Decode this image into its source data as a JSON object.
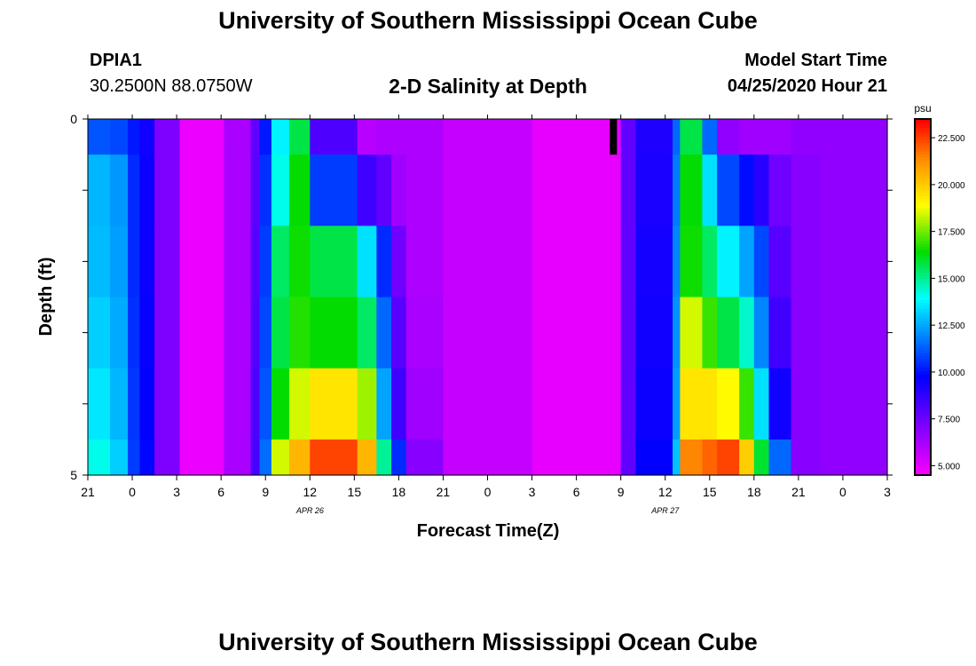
{
  "header": {
    "title": "University of Southern Mississippi Ocean Cube",
    "station_id": "DPIA1",
    "station_coords": "30.2500N 88.0750W",
    "chart_title": "2-D Salinity at Depth",
    "model_start_label": "Model Start Time",
    "model_start_value": "04/25/2020 Hour 21"
  },
  "footer": {
    "title": "University of Southern Mississippi Ocean Cube"
  },
  "chart_data": {
    "type": "heatmap",
    "title": "2-D Salinity at Depth",
    "xlabel": "Forecast Time(Z)",
    "ylabel": "Depth (ft)",
    "ylim": [
      0,
      5
    ],
    "y_tick_labels": [
      "0",
      "5"
    ],
    "x_tick_labels": [
      "21",
      "0",
      "3",
      "6",
      "9",
      "12",
      "15",
      "18",
      "21",
      "0",
      "3",
      "6",
      "9",
      "12",
      "15",
      "18",
      "21",
      "0",
      "3"
    ],
    "date_labels": [
      {
        "text": "APR 26",
        "hour_offset": 18
      },
      {
        "text": "APR 27",
        "hour_offset": 42
      }
    ],
    "hours_span": 54,
    "colorbar": {
      "unit": "psu",
      "min": 4.5,
      "max": 23.5,
      "tick_values": [
        5.0,
        7.5,
        10.0,
        12.5,
        15.0,
        17.5,
        20.0,
        22.5
      ],
      "tick_labels": [
        "5.000",
        "7.500",
        "10.000",
        "12.500",
        "15.000",
        "17.500",
        "20.000",
        "22.500"
      ]
    },
    "missing_data": [
      {
        "hour": 35.5,
        "depth_from": 0,
        "depth_to": 0.5
      }
    ],
    "depth_bands": [
      0,
      0.5,
      1.5,
      2.5,
      3.5,
      4.5,
      5
    ],
    "time_segments": [
      {
        "h0": 0,
        "h1": 1.5,
        "v": [
          11.2,
          12.8,
          12.9,
          13.2,
          13.6,
          14.2
        ]
      },
      {
        "h0": 1.5,
        "h1": 2.7,
        "v": [
          11.0,
          12.3,
          12.4,
          12.6,
          12.8,
          13.2
        ]
      },
      {
        "h0": 2.7,
        "h1": 3.5,
        "v": [
          10.2,
          10.5,
          10.5,
          10.6,
          10.7,
          10.8
        ]
      },
      {
        "h0": 3.5,
        "h1": 4.5,
        "v": [
          9.5,
          9.6,
          9.6,
          9.7,
          9.8,
          9.9
        ]
      },
      {
        "h0": 4.5,
        "h1": 6.2,
        "v": [
          7.2,
          7.2,
          7.2,
          7.2,
          7.2,
          7.2
        ]
      },
      {
        "h0": 6.2,
        "h1": 9.2,
        "v": [
          4.9,
          4.9,
          4.9,
          4.9,
          4.9,
          4.9
        ]
      },
      {
        "h0": 9.2,
        "h1": 11.0,
        "v": [
          6.3,
          6.3,
          6.3,
          6.3,
          6.3,
          6.3
        ]
      },
      {
        "h0": 11.0,
        "h1": 11.6,
        "v": [
          7.8,
          7.9,
          8.0,
          8.1,
          8.2,
          8.3
        ]
      },
      {
        "h0": 11.6,
        "h1": 12.4,
        "v": [
          10.2,
          10.6,
          10.8,
          11.0,
          11.2,
          11.6
        ]
      },
      {
        "h0": 12.4,
        "h1": 13.6,
        "v": [
          13.8,
          14.2,
          15.5,
          15.8,
          16.5,
          18.5
        ]
      },
      {
        "h0": 13.6,
        "h1": 15.0,
        "v": [
          15.8,
          16.5,
          16.6,
          16.8,
          18.5,
          20.5
        ]
      },
      {
        "h0": 15.0,
        "h1": 18.2,
        "v": [
          8.2,
          10.8,
          15.8,
          16.5,
          19.5,
          22.5
        ]
      },
      {
        "h0": 18.2,
        "h1": 19.5,
        "v": [
          6.0,
          8.5,
          13.5,
          15.5,
          18.0,
          20.5
        ]
      },
      {
        "h0": 19.5,
        "h1": 20.5,
        "v": [
          6.2,
          7.8,
          10.5,
          11.5,
          12.5,
          15.0
        ]
      },
      {
        "h0": 20.5,
        "h1": 21.5,
        "v": [
          6.2,
          6.5,
          7.5,
          8.0,
          8.5,
          10.5
        ]
      },
      {
        "h0": 21.5,
        "h1": 24.0,
        "v": [
          6.2,
          6.2,
          6.2,
          6.3,
          6.5,
          7.0
        ]
      },
      {
        "h0": 24.0,
        "h1": 30.0,
        "v": [
          5.7,
          5.7,
          5.7,
          5.7,
          5.7,
          5.7
        ]
      },
      {
        "h0": 30.0,
        "h1": 36.0,
        "v": [
          5.0,
          5.0,
          5.0,
          5.0,
          5.0,
          5.0
        ]
      },
      {
        "h0": 36.0,
        "h1": 37.0,
        "v": [
          7.8,
          7.8,
          7.8,
          7.8,
          7.8,
          7.8
        ]
      },
      {
        "h0": 37.0,
        "h1": 39.5,
        "v": [
          9.2,
          9.3,
          9.4,
          9.5,
          9.6,
          9.8
        ]
      },
      {
        "h0": 39.5,
        "h1": 40.0,
        "v": [
          11.5,
          11.8,
          12.0,
          12.2,
          12.4,
          13.0
        ]
      },
      {
        "h0": 40.0,
        "h1": 41.5,
        "v": [
          15.8,
          16.5,
          16.6,
          18.5,
          19.5,
          21.5
        ]
      },
      {
        "h0": 41.5,
        "h1": 42.5,
        "v": [
          11.5,
          13.5,
          15.5,
          17.0,
          19.5,
          22.0
        ]
      },
      {
        "h0": 42.5,
        "h1": 44.0,
        "v": [
          6.8,
          11.0,
          13.8,
          15.8,
          19.0,
          22.5
        ]
      },
      {
        "h0": 44.0,
        "h1": 45.0,
        "v": [
          6.5,
          10.0,
          12.5,
          14.5,
          17.0,
          20.0
        ]
      },
      {
        "h0": 45.0,
        "h1": 46.0,
        "v": [
          6.5,
          9.0,
          11.0,
          12.0,
          13.5,
          16.0
        ]
      },
      {
        "h0": 46.0,
        "h1": 47.5,
        "v": [
          6.5,
          7.5,
          8.0,
          8.5,
          9.5,
          11.5
        ]
      },
      {
        "h0": 47.5,
        "h1": 49.5,
        "v": [
          6.8,
          7.0,
          7.0,
          7.0,
          7.0,
          7.0
        ]
      },
      {
        "h0": 49.5,
        "h1": 54.0,
        "v": [
          6.8,
          6.8,
          6.8,
          6.8,
          6.8,
          6.8
        ]
      }
    ]
  }
}
